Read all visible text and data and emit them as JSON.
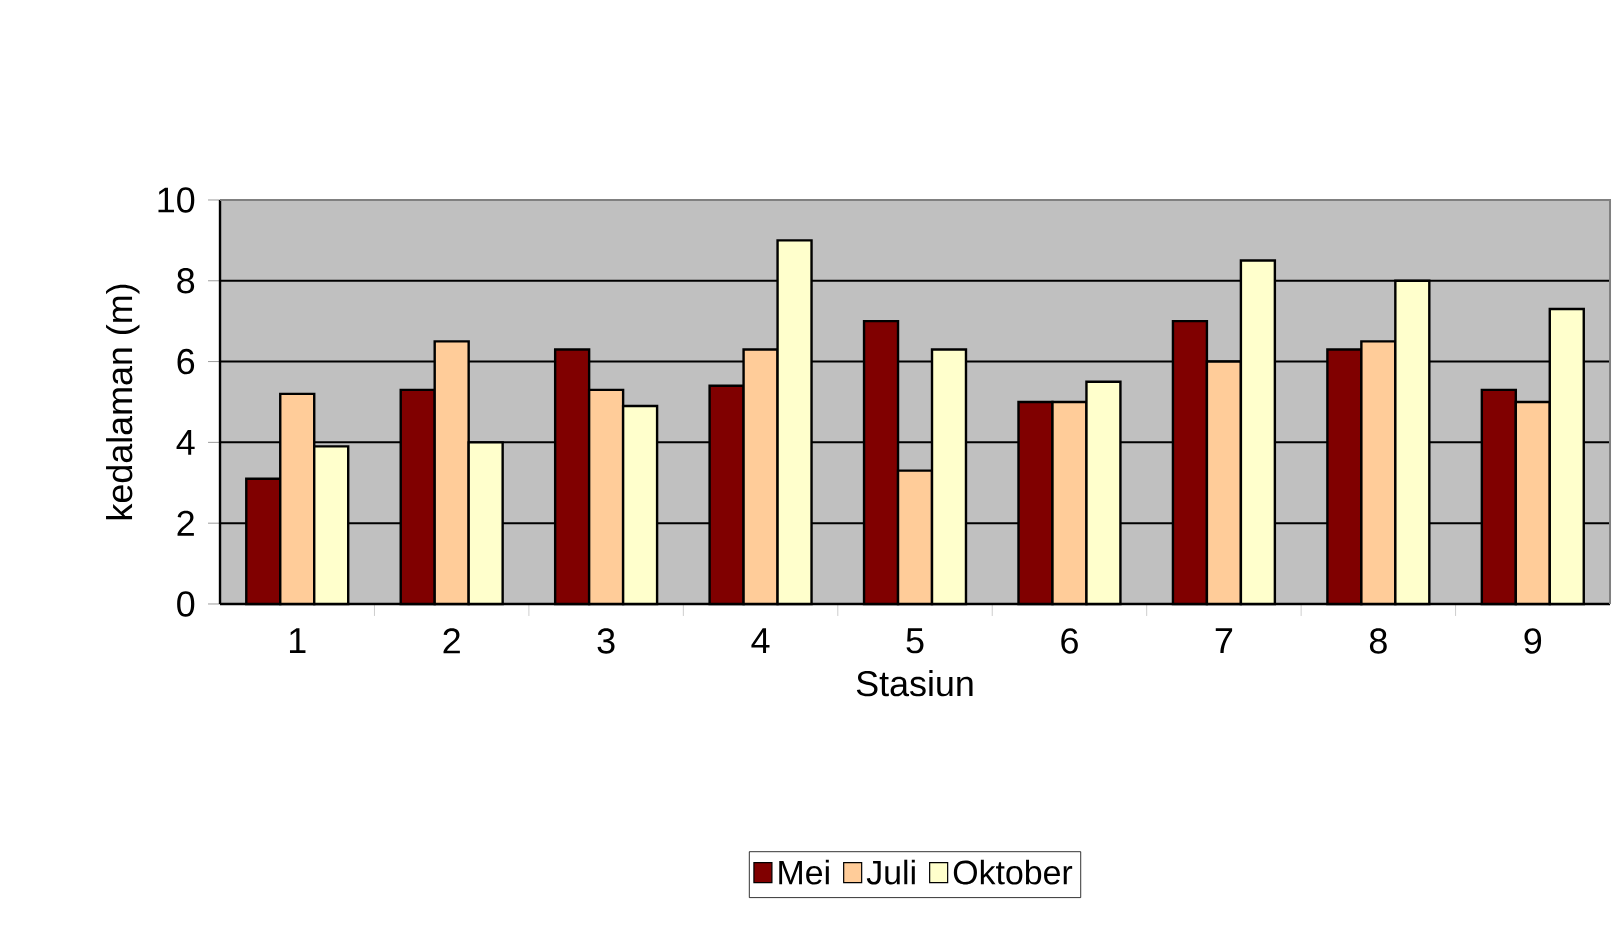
{
  "chart_data": {
    "type": "bar",
    "xlabel": "Stasiun",
    "ylabel": "kedalaman (m)",
    "categories": [
      "1",
      "2",
      "3",
      "4",
      "5",
      "6",
      "7",
      "8",
      "9"
    ],
    "series": [
      {
        "name": "Mei",
        "color": "#800000",
        "values": [
          3.1,
          5.3,
          6.3,
          5.4,
          7.0,
          5.0,
          7.0,
          6.3,
          5.3
        ]
      },
      {
        "name": "Juli",
        "color": "#ffcc99",
        "values": [
          5.2,
          6.5,
          5.3,
          6.3,
          3.3,
          5.0,
          6.0,
          6.5,
          5.0
        ]
      },
      {
        "name": "Oktober",
        "color": "#ffffcc",
        "values": [
          3.9,
          4.0,
          4.9,
          9.0,
          6.3,
          5.5,
          8.5,
          8.0,
          7.3
        ]
      }
    ],
    "ylim": [
      0,
      10
    ],
    "yticks": [
      0,
      2,
      4,
      6,
      8,
      10
    ],
    "grid": "y",
    "legend": "bottom"
  }
}
